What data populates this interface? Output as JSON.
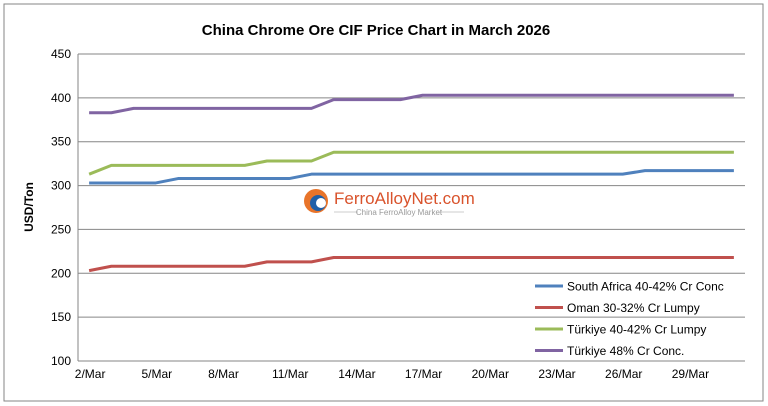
{
  "chart_data": {
    "type": "line",
    "title": "China Chrome Ore CIF Price Chart in March 2026",
    "xlabel": "",
    "ylabel": "USD/Ton",
    "ylim": [
      100,
      450
    ],
    "yticks": [
      100,
      150,
      200,
      250,
      300,
      350,
      400,
      450
    ],
    "grid": true,
    "legend_position": "bottom-right",
    "categories": [
      "2/Mar",
      "3/Mar",
      "4/Mar",
      "5/Mar",
      "6/Mar",
      "7/Mar",
      "8/Mar",
      "9/Mar",
      "10/Mar",
      "11/Mar",
      "12/Mar",
      "13/Mar",
      "14/Mar",
      "15/Mar",
      "16/Mar",
      "17/Mar",
      "18/Mar",
      "19/Mar",
      "20/Mar",
      "21/Mar",
      "22/Mar",
      "23/Mar",
      "24/Mar",
      "25/Mar",
      "26/Mar",
      "27/Mar",
      "28/Mar",
      "29/Mar",
      "30/Mar",
      "31/Mar"
    ],
    "xtick_labels": [
      "2/Mar",
      "5/Mar",
      "8/Mar",
      "11/Mar",
      "14/Mar",
      "17/Mar",
      "20/Mar",
      "23/Mar",
      "26/Mar",
      "29/Mar"
    ],
    "series": [
      {
        "name": "South Africa 40-42% Cr Conc",
        "color": "#4f81bd",
        "values": [
          303,
          303,
          303,
          303,
          308,
          308,
          308,
          308,
          308,
          308,
          313,
          313,
          313,
          313,
          313,
          313,
          313,
          313,
          313,
          313,
          313,
          313,
          313,
          313,
          313,
          317,
          317,
          317,
          317,
          317
        ]
      },
      {
        "name": "Oman 30-32% Cr Lumpy",
        "color": "#c0504d",
        "values": [
          203,
          208,
          208,
          208,
          208,
          208,
          208,
          208,
          213,
          213,
          213,
          218,
          218,
          218,
          218,
          218,
          218,
          218,
          218,
          218,
          218,
          218,
          218,
          218,
          218,
          218,
          218,
          218,
          218,
          218
        ]
      },
      {
        "name": "Türkiye 40-42% Cr Lumpy",
        "color": "#9bbb59",
        "values": [
          313,
          323,
          323,
          323,
          323,
          323,
          323,
          323,
          328,
          328,
          328,
          338,
          338,
          338,
          338,
          338,
          338,
          338,
          338,
          338,
          338,
          338,
          338,
          338,
          338,
          338,
          338,
          338,
          338,
          338
        ]
      },
      {
        "name": "Türkiye 48% Cr Conc.",
        "color": "#8064a2",
        "values": [
          383,
          383,
          388,
          388,
          388,
          388,
          388,
          388,
          388,
          388,
          388,
          398,
          398,
          398,
          398,
          403,
          403,
          403,
          403,
          403,
          403,
          403,
          403,
          403,
          403,
          403,
          403,
          403,
          403,
          403
        ]
      }
    ]
  },
  "watermark": {
    "brand": "FerroAlloyNet.com",
    "tagline": "China FerroAlloy Market"
  }
}
